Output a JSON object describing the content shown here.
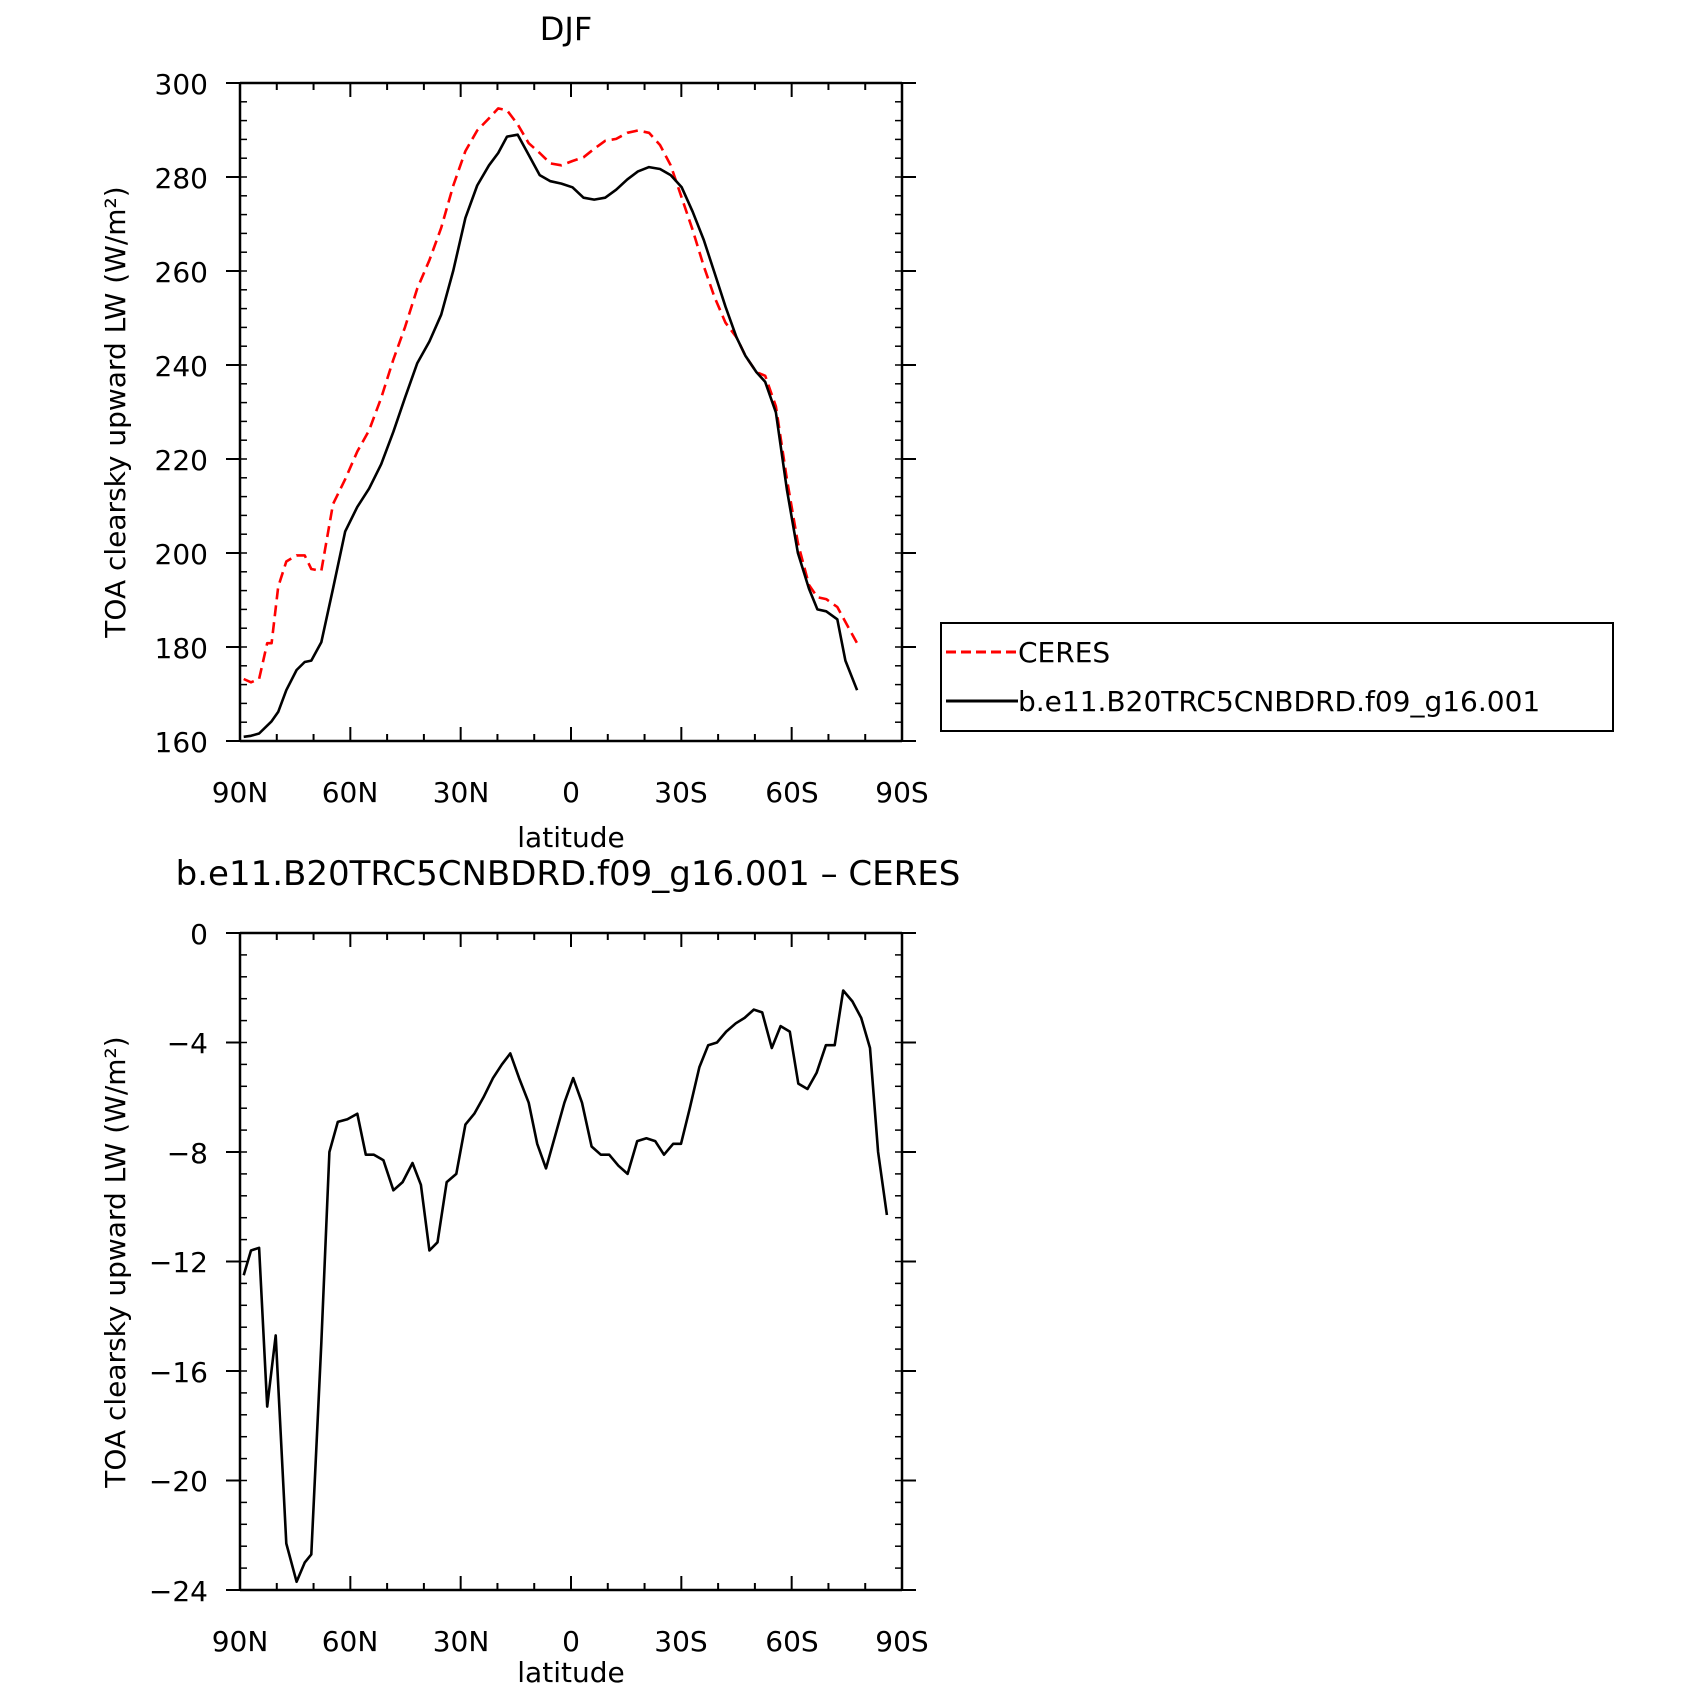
{
  "chart_data": [
    {
      "type": "line",
      "title": "DJF",
      "xlabel": "latitude",
      "ylabel": "TOA clearsky upward LW (W/m²)",
      "xlim": [
        90,
        -90
      ],
      "ylim": [
        160,
        300
      ],
      "yticks": [
        160,
        180,
        200,
        220,
        240,
        260,
        280,
        300
      ],
      "xticks": [
        {
          "value": 90,
          "label": "90N"
        },
        {
          "value": 60,
          "label": "60N"
        },
        {
          "value": 30,
          "label": "30N"
        },
        {
          "value": 0,
          "label": "0"
        },
        {
          "value": -30,
          "label": "30S"
        },
        {
          "value": -60,
          "label": "60S"
        },
        {
          "value": -90,
          "label": "90S"
        }
      ],
      "legend_position": "right",
      "series": [
        {
          "name": "CERES",
          "color": "#ff0000",
          "dash": "dashed",
          "points": [
            [
              89,
              173.2
            ],
            [
              87,
              172.5
            ],
            [
              84.8,
              173.2
            ],
            [
              82.6,
              180.8
            ],
            [
              81.4,
              180.8
            ],
            [
              79.6,
              192.8
            ],
            [
              77.4,
              198.2
            ],
            [
              74.6,
              199.5
            ],
            [
              72.4,
              199.5
            ],
            [
              70.6,
              196.6
            ],
            [
              67.9,
              196.2
            ],
            [
              64.7,
              210.4
            ],
            [
              61.4,
              215.7
            ],
            [
              58.1,
              221.6
            ],
            [
              54.9,
              226.1
            ],
            [
              51.6,
              233.0
            ],
            [
              48.3,
              241.2
            ],
            [
              45.1,
              248.1
            ],
            [
              41.8,
              256.3
            ],
            [
              38.5,
              262.3
            ],
            [
              35.3,
              269.2
            ],
            [
              32.0,
              278.2
            ],
            [
              28.7,
              285.5
            ],
            [
              25.5,
              289.9
            ],
            [
              22.3,
              292.5
            ],
            [
              19.8,
              294.6
            ],
            [
              17.4,
              294.2
            ],
            [
              14.5,
              291.2
            ],
            [
              11.5,
              287.2
            ],
            [
              8.5,
              285.1
            ],
            [
              5.6,
              282.9
            ],
            [
              2.6,
              282.5
            ],
            [
              -0.4,
              283.4
            ],
            [
              -3.4,
              284.2
            ],
            [
              -6.3,
              286.0
            ],
            [
              -9.3,
              287.7
            ],
            [
              -12.3,
              288.1
            ],
            [
              -15.3,
              289.4
            ],
            [
              -18.2,
              289.9
            ],
            [
              -21.2,
              289.4
            ],
            [
              -24.2,
              286.8
            ],
            [
              -27.1,
              282.5
            ],
            [
              -30.1,
              275.6
            ],
            [
              -33.1,
              268.7
            ],
            [
              -36.1,
              261.0
            ],
            [
              -39.0,
              254.5
            ],
            [
              -42.0,
              249.0
            ],
            [
              -45.0,
              245.9
            ],
            [
              -47.4,
              242.0
            ],
            [
              -50.4,
              238.5
            ],
            [
              -52.8,
              237.7
            ],
            [
              -55.7,
              231.2
            ],
            [
              -58.7,
              215.7
            ],
            [
              -61.7,
              202.1
            ],
            [
              -64.7,
              193.2
            ],
            [
              -67.0,
              190.6
            ],
            [
              -69.4,
              190.2
            ],
            [
              -72.4,
              188.5
            ],
            [
              -75.4,
              184.2
            ],
            [
              -77.8,
              180.8
            ]
          ]
        },
        {
          "name": "b.e11.B20TRC5CNBDRD.f09_g16.001",
          "color": "#000000",
          "dash": "solid",
          "points": [
            [
              89,
              160.9
            ],
            [
              87,
              161.1
            ],
            [
              84.8,
              161.6
            ],
            [
              81.4,
              164.2
            ],
            [
              79.6,
              166.2
            ],
            [
              77.4,
              170.8
            ],
            [
              74.6,
              175.1
            ],
            [
              72.4,
              176.8
            ],
            [
              70.6,
              177.1
            ],
            [
              67.9,
              181.0
            ],
            [
              64.7,
              192.4
            ],
            [
              61.4,
              204.6
            ],
            [
              58.1,
              209.8
            ],
            [
              54.9,
              213.7
            ],
            [
              51.6,
              218.9
            ],
            [
              48.3,
              225.8
            ],
            [
              45.1,
              233.1
            ],
            [
              41.8,
              240.4
            ],
            [
              38.5,
              245.0
            ],
            [
              35.3,
              250.7
            ],
            [
              32.0,
              260.1
            ],
            [
              28.7,
              271.3
            ],
            [
              25.5,
              278.2
            ],
            [
              22.3,
              282.5
            ],
            [
              19.8,
              285.1
            ],
            [
              17.4,
              288.6
            ],
            [
              14.5,
              289.0
            ],
            [
              11.5,
              284.7
            ],
            [
              8.5,
              280.4
            ],
            [
              5.6,
              279.1
            ],
            [
              2.6,
              278.6
            ],
            [
              -0.4,
              277.8
            ],
            [
              -3.4,
              275.6
            ],
            [
              -6.3,
              275.2
            ],
            [
              -9.3,
              275.6
            ],
            [
              -12.3,
              277.3
            ],
            [
              -15.3,
              279.5
            ],
            [
              -18.2,
              281.2
            ],
            [
              -21.2,
              282.1
            ],
            [
              -24.2,
              281.7
            ],
            [
              -27.1,
              280.4
            ],
            [
              -30.1,
              277.8
            ],
            [
              -33.1,
              272.6
            ],
            [
              -36.1,
              266.6
            ],
            [
              -39.0,
              259.7
            ],
            [
              -42.0,
              252.4
            ],
            [
              -45.0,
              245.9
            ],
            [
              -47.4,
              242.0
            ],
            [
              -50.4,
              238.5
            ],
            [
              -52.8,
              236.4
            ],
            [
              -55.7,
              229.9
            ],
            [
              -58.7,
              213.5
            ],
            [
              -61.7,
              200.0
            ],
            [
              -64.7,
              192.4
            ],
            [
              -67.0,
              188.0
            ],
            [
              -69.4,
              187.6
            ],
            [
              -72.4,
              185.9
            ],
            [
              -74.6,
              177.1
            ],
            [
              -77.8,
              170.8
            ]
          ]
        }
      ]
    },
    {
      "type": "line",
      "title": "b.e11.B20TRC5CNBDRD.f09_g16.001 – CERES",
      "xlabel": "latitude",
      "ylabel": "TOA clearsky upward LW (W/m²)",
      "xlim": [
        90,
        -90
      ],
      "ylim": [
        -24,
        0
      ],
      "yticks": [
        0,
        -4,
        -8,
        -12,
        -16,
        -20,
        -24
      ],
      "ytick_labels": [
        "0",
        "−4",
        "−8",
        "−12",
        "−16",
        "−20",
        "−24"
      ],
      "xticks": [
        {
          "value": 90,
          "label": "90N"
        },
        {
          "value": 60,
          "label": "60N"
        },
        {
          "value": 30,
          "label": "30N"
        },
        {
          "value": 0,
          "label": "0"
        },
        {
          "value": -30,
          "label": "30S"
        },
        {
          "value": -60,
          "label": "60S"
        },
        {
          "value": -90,
          "label": "90S"
        }
      ],
      "series": [
        {
          "color": "#000000",
          "dash": "solid",
          "points": [
            [
              89,
              -12.5
            ],
            [
              87,
              -11.6
            ],
            [
              84.8,
              -11.5
            ],
            [
              82.6,
              -17.3
            ],
            [
              80.3,
              -14.7
            ],
            [
              77.4,
              -22.3
            ],
            [
              74.6,
              -23.7
            ],
            [
              72.4,
              -23.0
            ],
            [
              70.6,
              -22.7
            ],
            [
              67.9,
              -15.0
            ],
            [
              65.7,
              -8.0
            ],
            [
              63.4,
              -6.9
            ],
            [
              60.8,
              -6.8
            ],
            [
              58.1,
              -6.6
            ],
            [
              55.8,
              -8.1
            ],
            [
              53.6,
              -8.1
            ],
            [
              51.0,
              -8.3
            ],
            [
              48.3,
              -9.4
            ],
            [
              45.8,
              -9.1
            ],
            [
              43.1,
              -8.4
            ],
            [
              40.8,
              -9.2
            ],
            [
              38.5,
              -11.6
            ],
            [
              36.3,
              -11.3
            ],
            [
              33.8,
              -9.1
            ],
            [
              31.2,
              -8.8
            ],
            [
              28.7,
              -7.0
            ],
            [
              26.3,
              -6.6
            ],
            [
              23.8,
              -6.0
            ],
            [
              21.2,
              -5.3
            ],
            [
              18.8,
              -4.8
            ],
            [
              16.5,
              -4.4
            ],
            [
              14.1,
              -5.3
            ],
            [
              11.5,
              -6.2
            ],
            [
              9.2,
              -7.7
            ],
            [
              6.8,
              -8.6
            ],
            [
              4.3,
              -7.4
            ],
            [
              1.8,
              -6.2
            ],
            [
              -0.6,
              -5.3
            ],
            [
              -3.0,
              -6.2
            ],
            [
              -5.6,
              -7.8
            ],
            [
              -8.1,
              -8.1
            ],
            [
              -10.4,
              -8.1
            ],
            [
              -12.9,
              -8.5
            ],
            [
              -15.4,
              -8.8
            ],
            [
              -18.0,
              -7.6
            ],
            [
              -20.5,
              -7.5
            ],
            [
              -22.9,
              -7.6
            ],
            [
              -25.3,
              -8.1
            ],
            [
              -27.8,
              -7.7
            ],
            [
              -29.9,
              -7.7
            ],
            [
              -32.3,
              -6.4
            ],
            [
              -34.9,
              -4.9
            ],
            [
              -37.3,
              -4.1
            ],
            [
              -39.7,
              -4.0
            ],
            [
              -42.2,
              -3.6
            ],
            [
              -44.8,
              -3.3
            ],
            [
              -47.2,
              -3.1
            ],
            [
              -49.7,
              -2.8
            ],
            [
              -52.0,
              -2.9
            ],
            [
              -54.6,
              -4.2
            ],
            [
              -57.0,
              -3.4
            ],
            [
              -59.5,
              -3.6
            ],
            [
              -61.8,
              -5.5
            ],
            [
              -64.3,
              -5.7
            ],
            [
              -66.8,
              -5.1
            ],
            [
              -69.3,
              -4.1
            ],
            [
              -71.7,
              -4.1
            ],
            [
              -74.0,
              -2.1
            ],
            [
              -76.5,
              -2.5
            ],
            [
              -78.9,
              -3.1
            ],
            [
              -81.3,
              -4.2
            ],
            [
              -83.5,
              -8.0
            ],
            [
              -85.9,
              -10.3
            ]
          ]
        }
      ]
    }
  ]
}
